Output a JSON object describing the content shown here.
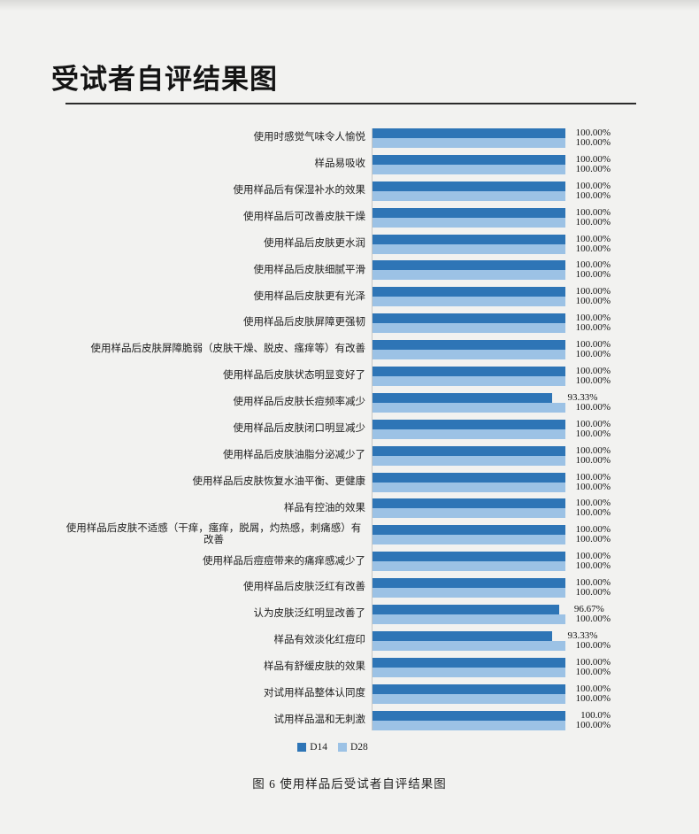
{
  "page": {
    "title": "受试者自评结果图",
    "caption": "图 6 使用样品后受试者自评结果图"
  },
  "colors": {
    "background": "#f2f2f0",
    "d14_bar": "#2E75B6",
    "d28_bar": "#9CC2E5"
  },
  "chart_data": {
    "type": "bar",
    "orientation": "horizontal",
    "title": "受试者自评结果图",
    "caption": "图 6 使用样品后受试者自评结果图",
    "xlim": [
      0,
      100
    ],
    "unit": "percent",
    "grid": false,
    "legend_position": "bottom",
    "categories": [
      "使用时感觉气味令人愉悦",
      "样品易吸收",
      "使用样品后有保湿补水的效果",
      "使用样品后可改善皮肤干燥",
      "使用样品后皮肤更水润",
      "使用样品后皮肤细腻平滑",
      "使用样品后皮肤更有光泽",
      "使用样品后皮肤屏障更强韧",
      "使用样品后皮肤屏障脆弱（皮肤干燥、脱皮、瘙痒等）有改善",
      "使用样品后皮肤状态明显变好了",
      "使用样品后皮肤长痘频率减少",
      "使用样品后皮肤闭口明显减少",
      "使用样品后皮肤油脂分泌减少了",
      "使用样品后皮肤恢复水油平衡、更健康",
      "样品有控油的效果",
      "使用样品后皮肤不适感（干痒，瘙痒，脱屑，灼热感，刺痛感）有改善",
      "使用样品后痘痘带来的痛痒感减少了",
      "使用样品后皮肤泛红有改善",
      "认为皮肤泛红明显改善了",
      "样品有效淡化红痘印",
      "样品有舒缓皮肤的效果",
      "对试用样品整体认同度",
      "试用样品温和无刺激"
    ],
    "series": [
      {
        "name": "D14",
        "color": "#2E75B6",
        "values": [
          100,
          100,
          100,
          100,
          100,
          100,
          100,
          100,
          100,
          100,
          93.33,
          100,
          100,
          100,
          100,
          100,
          100,
          100,
          96.67,
          93.33,
          100,
          100,
          100
        ],
        "display_labels": [
          "100.00%",
          "100.00%",
          "100.00%",
          "100.00%",
          "100.00%",
          "100.00%",
          "100.00%",
          "100.00%",
          "100.00%",
          "100.00%",
          "93.33%",
          "100.00%",
          "100.00%",
          "100.00%",
          "100.00%",
          "100.00%",
          "100.00%",
          "100.00%",
          "96.67%",
          "93.33%",
          "100.00%",
          "100.00%",
          "100.0%"
        ]
      },
      {
        "name": "D28",
        "color": "#9CC2E5",
        "values": [
          100,
          100,
          100,
          100,
          100,
          100,
          100,
          100,
          100,
          100,
          100,
          100,
          100,
          100,
          100,
          100,
          100,
          100,
          100,
          100,
          100,
          100,
          100
        ],
        "display_labels": [
          "100.00%",
          "100.00%",
          "100.00%",
          "100.00%",
          "100.00%",
          "100.00%",
          "100.00%",
          "100.00%",
          "100.00%",
          "100.00%",
          "100.00%",
          "100.00%",
          "100.00%",
          "100.00%",
          "100.00%",
          "100.00%",
          "100.00%",
          "100.00%",
          "100.00%",
          "100.00%",
          "100.00%",
          "100.00%",
          "100.00%"
        ]
      }
    ]
  }
}
